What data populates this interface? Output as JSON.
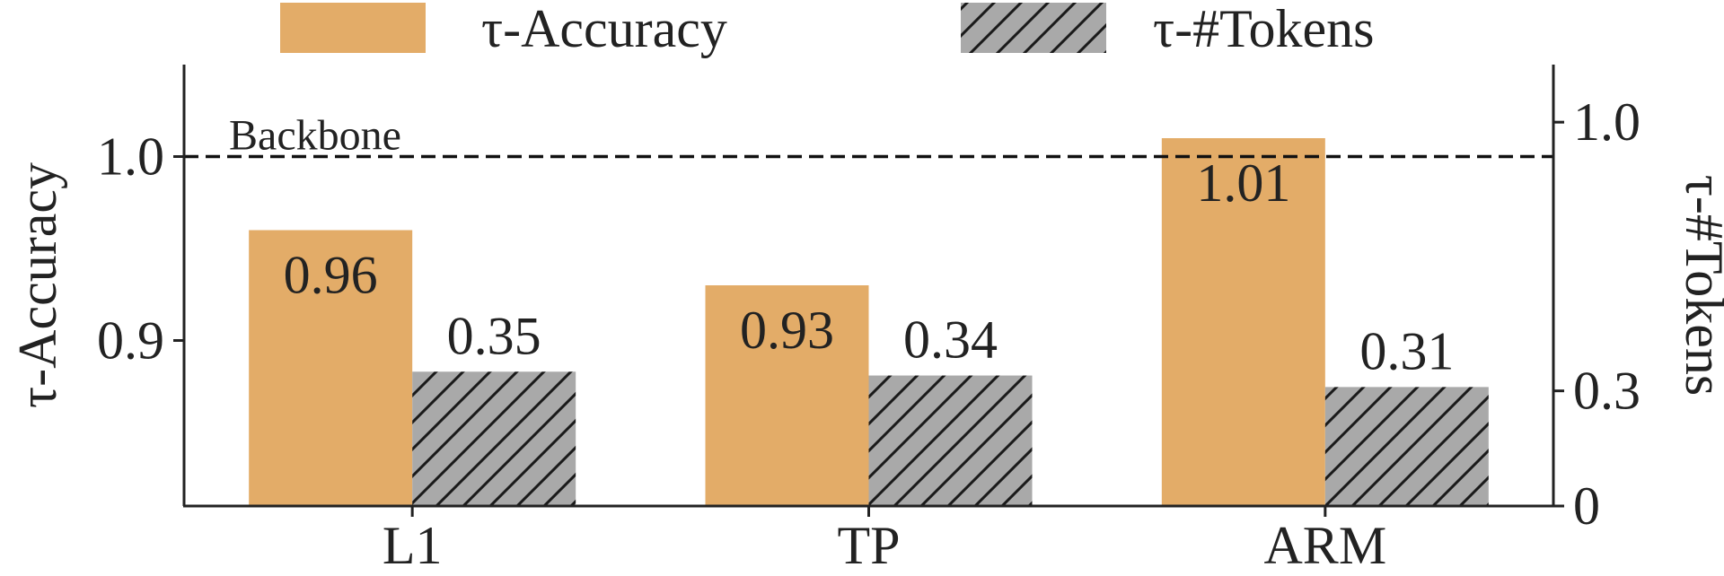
{
  "chart_data": {
    "type": "bar",
    "categories": [
      "L1",
      "TP",
      "ARM"
    ],
    "series": [
      {
        "name": "τ-Accuracy",
        "axis": "left",
        "color": "#E3AC68",
        "pattern": "solid",
        "values": [
          0.96,
          0.93,
          1.01
        ],
        "labels": [
          "0.96",
          "0.93",
          "1.01"
        ]
      },
      {
        "name": "τ-#Tokens",
        "axis": "right",
        "color": "#A9A9A9",
        "pattern": "hatch",
        "values": [
          0.35,
          0.34,
          0.31
        ],
        "labels": [
          "0.35",
          "0.34",
          "0.31"
        ]
      }
    ],
    "left_axis": {
      "label": "τ-Accuracy",
      "ylim": [
        0.81,
        1.05
      ],
      "ticks": [
        0.9,
        1.0
      ],
      "tick_labels": [
        "0.9",
        "1.0"
      ]
    },
    "right_axis": {
      "label": "τ-#Tokens",
      "ylim": [
        0,
        1.15
      ],
      "ticks": [
        0,
        0.3,
        1.0
      ],
      "tick_labels": [
        "0",
        "0.3",
        "1.0"
      ]
    },
    "reference_line": {
      "label": "Backbone",
      "value": 1.0,
      "style": "dashed"
    },
    "legend_position": "top-center",
    "grid": false
  }
}
